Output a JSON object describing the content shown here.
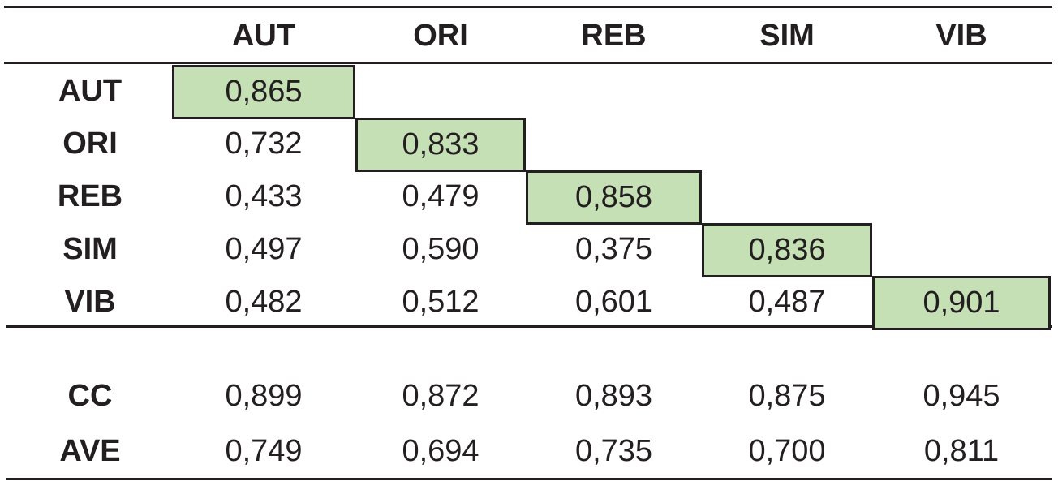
{
  "table": {
    "header": [
      "AUT",
      "ORI",
      "REB",
      "SIM",
      "VIB"
    ],
    "rows": [
      {
        "label": "AUT",
        "values": [
          "0,865"
        ]
      },
      {
        "label": "ORI",
        "values": [
          "0,732",
          "0,833"
        ]
      },
      {
        "label": "REB",
        "values": [
          "0,433",
          "0,479",
          "0,858"
        ]
      },
      {
        "label": "SIM",
        "values": [
          "0,497",
          "0,590",
          "0,375",
          "0,836"
        ]
      },
      {
        "label": "VIB",
        "values": [
          "0,482",
          "0,512",
          "0,601",
          "0,487",
          "0,901"
        ]
      }
    ],
    "summary": [
      {
        "label": "CC",
        "values": [
          "0,899",
          "0,872",
          "0,893",
          "0,875",
          "0,945"
        ]
      },
      {
        "label": "AVE",
        "values": [
          "0,749",
          "0,694",
          "0,735",
          "0,700",
          "0,811"
        ]
      }
    ]
  }
}
